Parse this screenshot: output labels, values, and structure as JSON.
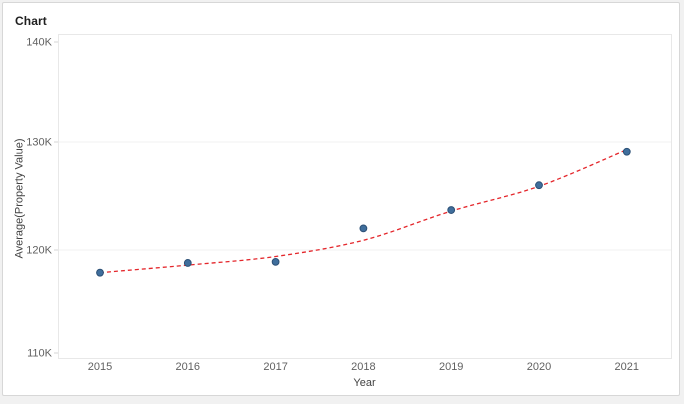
{
  "card": {
    "title": "Chart"
  },
  "colors": {
    "page_bg": "#f1f1f1",
    "card_bg": "#ffffff",
    "card_border": "#d7d7d7",
    "plot_border": "#e8e8e8",
    "grid": "#f2f2f2",
    "tick_mark": "#d4d4d4",
    "tick_label": "#616161",
    "axis_title": "#424242",
    "title": "#1f1f1f",
    "marker": "#3f6e9c",
    "marker_border": "#2c5076",
    "trend": "#e4262b"
  },
  "chart_data": {
    "type": "scatter",
    "title": "Chart",
    "xlabel": "Year",
    "ylabel": "Average(Property Value)",
    "x": [
      2015,
      2016,
      2017,
      2018,
      2019,
      2020,
      2021
    ],
    "series": [
      {
        "name": "Average(Property Value)",
        "values": [
          117900,
          118800,
          118900,
          122000,
          123700,
          126000,
          129100
        ]
      }
    ],
    "trend_line": {
      "style": "dashed",
      "color": "#e4262b",
      "fit": "exponential",
      "values": [
        117900,
        118600,
        119400,
        120900,
        123600,
        125900,
        129300
      ]
    },
    "ylim": [
      110000,
      140000
    ],
    "yticks": [
      {
        "label": "140K",
        "value": 140000
      },
      {
        "label": "130K",
        "value": 130000
      },
      {
        "label": "120K",
        "value": 120000
      },
      {
        "label": "110K",
        "value": 110000
      }
    ],
    "xticks": [
      "2015",
      "2016",
      "2017",
      "2018",
      "2019",
      "2020",
      "2021"
    ],
    "grid": "horizontal",
    "legend": false
  }
}
